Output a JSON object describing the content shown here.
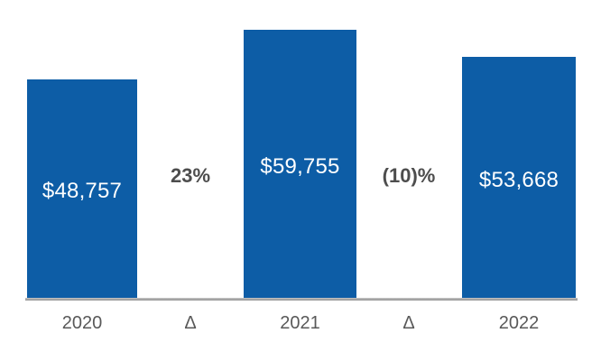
{
  "chart_data": {
    "type": "bar",
    "title": "",
    "xlabel": "",
    "ylabel": "",
    "categories": [
      "2020",
      "Δ",
      "2021",
      "Δ",
      "2022"
    ],
    "bars": [
      {
        "category": "2020",
        "value": 48757,
        "label": "$48,757"
      },
      {
        "category": "2021",
        "value": 59755,
        "label": "$59,755"
      },
      {
        "category": "2022",
        "value": 53668,
        "label": "$53,668"
      }
    ],
    "deltas": [
      {
        "label": "23%"
      },
      {
        "label": "(10)%"
      }
    ],
    "ylim": [
      0,
      60000
    ],
    "grid": false,
    "legend": null,
    "axis_ticks": false,
    "colors": {
      "bar": "#0D5DA6",
      "value_label": "#FFFFFF",
      "axis_label": "#595959",
      "delta_label": "#4D4D4D",
      "axis_line": "#8F8F8F",
      "axis_line_highlight": "#C6C6C6",
      "background": "#FFFFFF"
    }
  }
}
